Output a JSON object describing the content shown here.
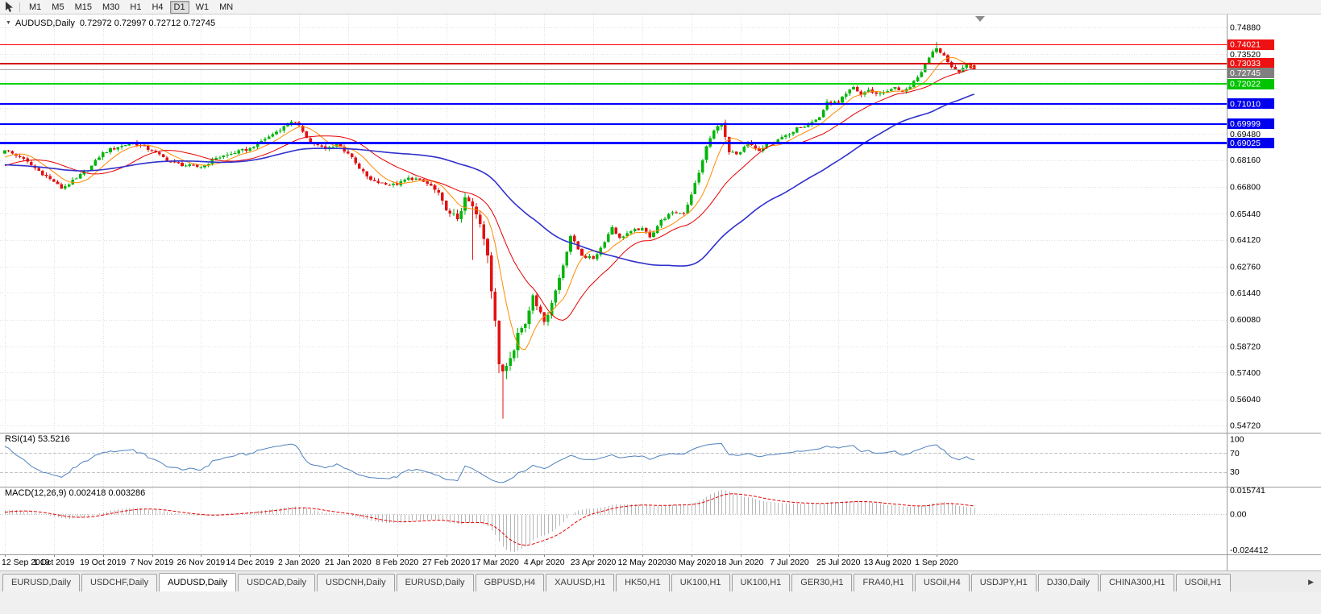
{
  "toolbar": {
    "timeframes": [
      "M1",
      "M5",
      "M15",
      "M30",
      "H1",
      "H4",
      "D1",
      "W1",
      "MN"
    ],
    "active_timeframe": "D1"
  },
  "chart_header": {
    "collapse_icon": "▼",
    "symbol_label": "AUDUSD,Daily",
    "ohlc_text": "0.72972 0.72997 0.72712 0.72745"
  },
  "indicators": {
    "rsi_label": "RSI(14) 53.5216",
    "macd_label": "MACD(12,26,9) 0.002418 0.003286"
  },
  "tabs": {
    "items": [
      "EURUSD,Daily",
      "USDCHF,Daily",
      "AUDUSD,Daily",
      "USDCAD,Daily",
      "USDCNH,Daily",
      "EURUSD,Daily",
      "GBPUSD,H4",
      "XAUUSD,H1",
      "HK50,H1",
      "UK100,H1",
      "UK100,H1",
      "GER30,H1",
      "FRA40,H1",
      "USOil,H4",
      "USDJPY,H1",
      "DJ30,Daily",
      "CHINA300,H1",
      "USOil,H1"
    ],
    "active_index": 2,
    "scroll_right_icon": "▶"
  },
  "chart_data": {
    "type": "candlestick",
    "symbol": "AUDUSD",
    "timeframe": "Daily",
    "current_bar": {
      "open": 0.72972,
      "high": 0.72997,
      "low": 0.72712,
      "close": 0.72745
    },
    "price_axis": {
      "min": 0.5472,
      "max": 0.7488,
      "grid_labels": [
        {
          "text": "0.74880",
          "value": 0.7488
        },
        {
          "text": "0.73520",
          "value": 0.7352
        },
        {
          "text": "0.69480",
          "value": 0.6948
        },
        {
          "text": "0.68160",
          "value": 0.6816
        },
        {
          "text": "0.66800",
          "value": 0.668
        },
        {
          "text": "0.65440",
          "value": 0.6544
        },
        {
          "text": "0.64120",
          "value": 0.6412
        },
        {
          "text": "0.62760",
          "value": 0.6276
        },
        {
          "text": "0.61440",
          "value": 0.6144
        },
        {
          "text": "0.60080",
          "value": 0.6008
        },
        {
          "text": "0.58720",
          "value": 0.5872
        },
        {
          "text": "0.57400",
          "value": 0.574
        },
        {
          "text": "0.56040",
          "value": 0.5604
        },
        {
          "text": "0.54720",
          "value": 0.5472
        }
      ],
      "grid_only_values": [
        0.7216,
        0.708
      ]
    },
    "levels": [
      {
        "value": 0.74021,
        "label": "0.74021",
        "color": "#ff0000",
        "width": 1,
        "label_bg": "#ee1111"
      },
      {
        "value": 0.73033,
        "label": "0.73033",
        "color": "#d40000",
        "width": 2,
        "label_bg": "#ee1111",
        "label_dy": -1
      },
      {
        "value": 0.72745,
        "label": "0.72745",
        "color": "#a8a8a8",
        "width": 1,
        "label_bg": "#808080",
        "label_dy": 4
      },
      {
        "value": 0.72022,
        "label": "0.72022",
        "color": "#00d200",
        "width": 2,
        "label_bg": "#00c400"
      },
      {
        "value": 0.7101,
        "label": "0.71010",
        "color": "#0000ff",
        "width": 2,
        "label_bg": "#0000ee"
      },
      {
        "value": 0.69999,
        "label": "0.69999",
        "color": "#0000ff",
        "width": 2,
        "label_bg": "#0000ee"
      },
      {
        "value": 0.69025,
        "label": "0.69025",
        "color": "#0000ff",
        "width": 3,
        "label_bg": "#0000ee"
      }
    ],
    "date_labels": [
      "12 Sep 2019",
      "1 Oct 2019",
      "19 Oct 2019",
      "7 Nov 2019",
      "26 Nov 2019",
      "14 Dec 2019",
      "2 Jan 2020",
      "21 Jan 2020",
      "8 Feb 2020",
      "27 Feb 2020",
      "17 Mar 2020",
      "4 Apr 2020",
      "23 Apr 2020",
      "12 May 2020",
      "30 May 2020",
      "18 Jun 2020",
      "7 Jul 2020",
      "25 Jul 2020",
      "13 Aug 2020",
      "1 Sep 2020"
    ],
    "bars_per_tick": 13,
    "bar_count": 258,
    "pre_bars": 60,
    "up_color": "#00b60b",
    "down_color": "#e21212",
    "anchors": [
      [
        -60,
        0.695
      ],
      [
        -48,
        0.6875
      ],
      [
        -34,
        0.676
      ],
      [
        -22,
        0.6715
      ],
      [
        -12,
        0.676
      ],
      [
        -4,
        0.682
      ],
      [
        0,
        0.6865
      ],
      [
        4,
        0.6832
      ],
      [
        8,
        0.6775
      ],
      [
        13,
        0.6706
      ],
      [
        15,
        0.6672
      ],
      [
        19,
        0.6722
      ],
      [
        23,
        0.6788
      ],
      [
        26,
        0.6855
      ],
      [
        30,
        0.6882
      ],
      [
        34,
        0.6906
      ],
      [
        39,
        0.6862
      ],
      [
        44,
        0.6806
      ],
      [
        48,
        0.6788
      ],
      [
        52,
        0.678
      ],
      [
        56,
        0.6826
      ],
      [
        61,
        0.6852
      ],
      [
        65,
        0.6876
      ],
      [
        70,
        0.6936
      ],
      [
        76,
        0.701
      ],
      [
        78,
        0.6992
      ],
      [
        81,
        0.6906
      ],
      [
        85,
        0.6872
      ],
      [
        88,
        0.6896
      ],
      [
        91,
        0.685
      ],
      [
        94,
        0.6772
      ],
      [
        97,
        0.6716
      ],
      [
        101,
        0.6692
      ],
      [
        104,
        0.669
      ],
      [
        107,
        0.6726
      ],
      [
        110,
        0.6716
      ],
      [
        113,
        0.6686
      ],
      [
        116,
        0.661
      ],
      [
        118,
        0.6546
      ],
      [
        120,
        0.6516
      ],
      [
        122,
        0.6626
      ],
      [
        124,
        0.6582
      ],
      [
        126,
        0.6492
      ],
      [
        128,
        0.6332
      ],
      [
        130,
        0.6002
      ],
      [
        131,
        0.5782
      ],
      [
        132,
        0.5746
      ],
      [
        134,
        0.5812
      ],
      [
        136,
        0.5942
      ],
      [
        138,
        0.5986
      ],
      [
        140,
        0.6132
      ],
      [
        142,
        0.6046
      ],
      [
        143,
        0.5996
      ],
      [
        145,
        0.6092
      ],
      [
        148,
        0.6282
      ],
      [
        150,
        0.6432
      ],
      [
        153,
        0.6332
      ],
      [
        156,
        0.6316
      ],
      [
        158,
        0.6372
      ],
      [
        161,
        0.6476
      ],
      [
        163,
        0.6422
      ],
      [
        166,
        0.6456
      ],
      [
        169,
        0.6472
      ],
      [
        171,
        0.6426
      ],
      [
        174,
        0.6512
      ],
      [
        177,
        0.6552
      ],
      [
        180,
        0.6546
      ],
      [
        182,
        0.6642
      ],
      [
        184,
        0.6752
      ],
      [
        186,
        0.6886
      ],
      [
        188,
        0.6966
      ],
      [
        190,
        0.7002
      ],
      [
        192,
        0.6856
      ],
      [
        194,
        0.6846
      ],
      [
        195,
        0.6856
      ],
      [
        197,
        0.6906
      ],
      [
        200,
        0.6862
      ],
      [
        203,
        0.6906
      ],
      [
        206,
        0.6932
      ],
      [
        208,
        0.6946
      ],
      [
        210,
        0.6982
      ],
      [
        213,
        0.6996
      ],
      [
        216,
        0.7032
      ],
      [
        218,
        0.7112
      ],
      [
        221,
        0.7106
      ],
      [
        223,
        0.7152
      ],
      [
        225,
        0.7186
      ],
      [
        227,
        0.7146
      ],
      [
        229,
        0.7172
      ],
      [
        231,
        0.7152
      ],
      [
        234,
        0.7166
      ],
      [
        236,
        0.7186
      ],
      [
        238,
        0.7162
      ],
      [
        240,
        0.7186
      ],
      [
        242,
        0.7236
      ],
      [
        244,
        0.7302
      ],
      [
        246,
        0.7366
      ],
      [
        247,
        0.7382
      ],
      [
        249,
        0.7346
      ],
      [
        251,
        0.7286
      ],
      [
        253,
        0.7262
      ],
      [
        255,
        0.7306
      ],
      [
        257,
        0.72745
      ]
    ],
    "noise_default": 0.0008,
    "noise_zones": [
      [
        113,
        126,
        0.0018
      ],
      [
        127,
        136,
        0.0026
      ],
      [
        137,
        147,
        0.0016
      ]
    ],
    "wick_default": 0.0013,
    "wick_zones": [
      [
        113,
        126,
        0.003
      ],
      [
        127,
        136,
        0.0048
      ],
      [
        137,
        147,
        0.0026
      ],
      [
        184,
        192,
        0.002
      ]
    ],
    "overrides": [
      {
        "i": 124,
        "l": 0.631
      },
      {
        "i": 132,
        "l": 0.5506
      },
      {
        "i": 247,
        "h": 0.7414
      },
      {
        "i": 257,
        "o": 0.72972,
        "h": 0.72997,
        "l": 0.72712,
        "c": 0.72745
      }
    ],
    "moving_averages": [
      {
        "name": "fast",
        "period": 8,
        "color": "#ff8a00",
        "width": 1
      },
      {
        "name": "medium",
        "period": 20,
        "color": "#e60000",
        "width": 1
      },
      {
        "name": "slow",
        "period": 55,
        "color": "#3030cc",
        "width": 1.6
      }
    ],
    "rsi": {
      "period": 14,
      "color": "#4f81bd",
      "current": 53.5216,
      "levels": [
        {
          "text": "100",
          "value": 100
        },
        {
          "text": "70",
          "value": 70
        },
        {
          "text": "30",
          "value": 30
        }
      ],
      "level_lines": [
        70,
        30
      ]
    },
    "macd": {
      "fast": 12,
      "slow": 26,
      "signal": 9,
      "value": 0.002418,
      "signal_value": 0.003286,
      "hist_color": "#b6b6b6",
      "signal_color": "#e60000",
      "axis_labels": [
        {
          "text": "0.015741",
          "pos": "max"
        },
        {
          "text": "0.00",
          "pos": "zero"
        },
        {
          "text": "-0.024412",
          "pos": "min"
        }
      ]
    },
    "shift_marker": true
  }
}
